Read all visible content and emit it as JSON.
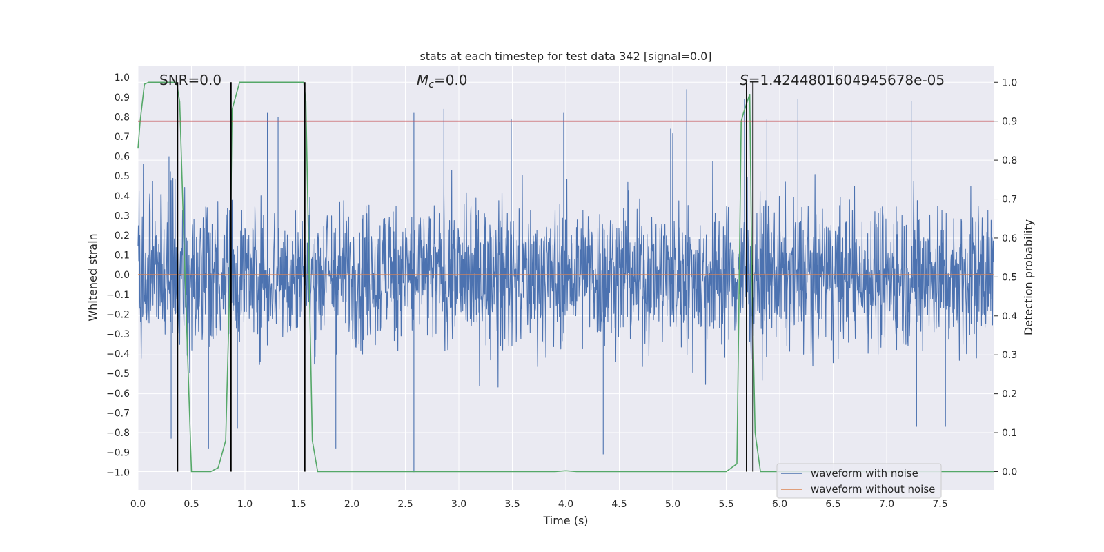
{
  "chart_data": {
    "type": "line",
    "title": "stats at each timestep for test data 342 [signal=0.0]",
    "xlabel": "Time (s)",
    "ylabel_left": "Whitened strain",
    "ylabel_right": "Detection probability",
    "xlim": [
      0.0,
      8.0
    ],
    "ylim_left": [
      -1.09,
      1.06
    ],
    "ylim_right": [
      -0.047,
      1.043
    ],
    "x_ticks": [
      0.0,
      0.5,
      1.0,
      1.5,
      2.0,
      2.5,
      3.0,
      3.5,
      4.0,
      4.5,
      5.0,
      5.5,
      6.0,
      6.5,
      7.0,
      7.5
    ],
    "x_tick_labels": [
      "0.0",
      "0.5",
      "1.0",
      "1.5",
      "2.0",
      "2.5",
      "3.0",
      "3.5",
      "4.0",
      "4.5",
      "5.0",
      "5.5",
      "6.0",
      "6.5",
      "7.0",
      "7.5"
    ],
    "y_left_ticks": [
      1.0,
      0.9,
      0.8,
      0.7,
      0.6,
      0.5,
      0.4,
      0.3,
      0.2,
      0.1,
      0.0,
      -0.1,
      -0.2,
      -0.3,
      -0.4,
      -0.5,
      -0.6,
      -0.7,
      -0.8,
      -0.9,
      -1.0
    ],
    "y_left_tick_labels": [
      "1.0",
      "0.9",
      "0.8",
      "0.7",
      "0.6",
      "0.5",
      "0.4",
      "0.3",
      "0.2",
      "0.1",
      "0.0",
      "−0.1",
      "−0.2",
      "−0.3",
      "−0.4",
      "−0.5",
      "−0.6",
      "−0.7",
      "−0.8",
      "−0.9",
      "−1.0"
    ],
    "y_right_ticks": [
      1.0,
      0.9,
      0.8,
      0.7,
      0.6,
      0.5,
      0.4,
      0.3,
      0.2,
      0.1,
      0.0
    ],
    "y_right_tick_labels": [
      "1.0",
      "0.9",
      "0.8",
      "0.7",
      "0.6",
      "0.5",
      "0.4",
      "0.3",
      "0.2",
      "0.1",
      "0.0"
    ],
    "annotations": {
      "snr": "SNR=0.0",
      "mc_symbol": "M",
      "mc_sub": "c",
      "mc_value": "=0.0",
      "s_symbol": "S",
      "s_value": "=1.4244801604945678e-05"
    },
    "threshold": 0.9,
    "vertical_markers": [
      0.37,
      0.87,
      1.56,
      5.69,
      5.75
    ],
    "series": [
      {
        "name": "waveform with noise",
        "color": "#4c72b0",
        "axis": "left",
        "description": "dense noise, envelope roughly ±0.4 to ±0.6 with spikes",
        "spikes": [
          {
            "x": 0.29,
            "y": 0.6
          },
          {
            "x": 0.31,
            "y": -0.83
          },
          {
            "x": 0.66,
            "y": -0.88
          },
          {
            "x": 0.93,
            "y": -0.78
          },
          {
            "x": 1.21,
            "y": 0.82
          },
          {
            "x": 1.31,
            "y": 0.8
          },
          {
            "x": 1.85,
            "y": -0.88
          },
          {
            "x": 2.58,
            "y": 0.82
          },
          {
            "x": 2.58,
            "y": -1.0
          },
          {
            "x": 2.86,
            "y": 0.84
          },
          {
            "x": 3.49,
            "y": 0.79
          },
          {
            "x": 3.98,
            "y": 0.82
          },
          {
            "x": 4.35,
            "y": -0.91
          },
          {
            "x": 4.98,
            "y": 0.74
          },
          {
            "x": 5.13,
            "y": 0.94
          },
          {
            "x": 5.67,
            "y": 0.89
          },
          {
            "x": 5.88,
            "y": 0.79
          },
          {
            "x": 6.17,
            "y": 0.89
          },
          {
            "x": 7.23,
            "y": 0.88
          },
          {
            "x": 7.28,
            "y": -0.77
          },
          {
            "x": 7.55,
            "y": -0.77
          }
        ]
      },
      {
        "name": "waveform without noise",
        "color": "#dd8452",
        "axis": "left",
        "x": [
          0.0,
          8.0
        ],
        "y": [
          0.0,
          0.0
        ]
      },
      {
        "name": "detection probability",
        "color": "#55a868",
        "axis": "right",
        "x": [
          0.0,
          0.02,
          0.06,
          0.1,
          0.36,
          0.39,
          0.44,
          0.5,
          0.68,
          0.75,
          0.82,
          0.86,
          0.88,
          0.95,
          1.0,
          1.55,
          1.57,
          1.63,
          1.68,
          3.9,
          4.0,
          4.1,
          5.5,
          5.6,
          5.64,
          5.66,
          5.72,
          5.74,
          5.77,
          5.82,
          5.9,
          7.5,
          8.0
        ],
        "y": [
          0.83,
          0.9,
          0.995,
          1.0,
          1.0,
          0.95,
          0.5,
          0.0,
          0.0,
          0.01,
          0.08,
          0.5,
          0.93,
          1.0,
          1.0,
          1.0,
          0.95,
          0.08,
          0.0,
          0.0,
          0.002,
          0.0,
          0.0,
          0.02,
          0.9,
          0.92,
          0.97,
          0.5,
          0.1,
          0.0,
          0.0,
          0.0,
          0.0
        ]
      },
      {
        "name": "threshold",
        "color": "#c44e52",
        "axis": "right",
        "x": [
          0.0,
          8.0
        ],
        "y": [
          0.9,
          0.9
        ]
      }
    ],
    "legend": {
      "position": "lower-right",
      "entries": [
        {
          "label": "waveform with noise",
          "color": "#4c72b0"
        },
        {
          "label": "waveform without noise",
          "color": "#dd8452"
        }
      ]
    }
  },
  "colors": {
    "plot_bg": "#eaeaf2",
    "grid": "#ffffff",
    "text": "#262626",
    "marker": "#000000"
  }
}
